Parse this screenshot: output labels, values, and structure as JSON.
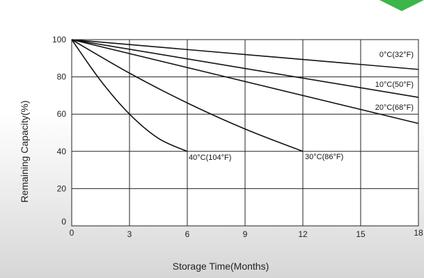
{
  "chart_data": {
    "type": "line",
    "title": "",
    "xlabel": "Storage Time(Months)",
    "ylabel": "Remaining Capacity(%)",
    "xlim": [
      0,
      18
    ],
    "ylim": [
      0,
      100
    ],
    "xticks": [
      0,
      3,
      6,
      9,
      12,
      15,
      18
    ],
    "yticks": [
      0,
      20,
      40,
      60,
      80,
      100
    ],
    "grid": true,
    "colors": {
      "line": "#111111",
      "grid": "#222222",
      "accent": "#3cb54a"
    },
    "series": [
      {
        "name": "0°C(32°F)",
        "x": [
          0,
          18
        ],
        "y": [
          100,
          84
        ]
      },
      {
        "name": "10°C(50°F)",
        "x": [
          0,
          18
        ],
        "y": [
          100,
          69
        ]
      },
      {
        "name": "20°C(68°F)",
        "x": [
          0,
          18
        ],
        "y": [
          100,
          55
        ]
      },
      {
        "name": "30°C(86°F)",
        "x": [
          0,
          3,
          6,
          9,
          12
        ],
        "y": [
          100,
          82,
          66,
          52,
          40
        ]
      },
      {
        "name": "40°C(104°F)",
        "x": [
          0,
          1.5,
          3,
          4.5,
          6
        ],
        "y": [
          100,
          78,
          60,
          47,
          40
        ]
      }
    ]
  }
}
